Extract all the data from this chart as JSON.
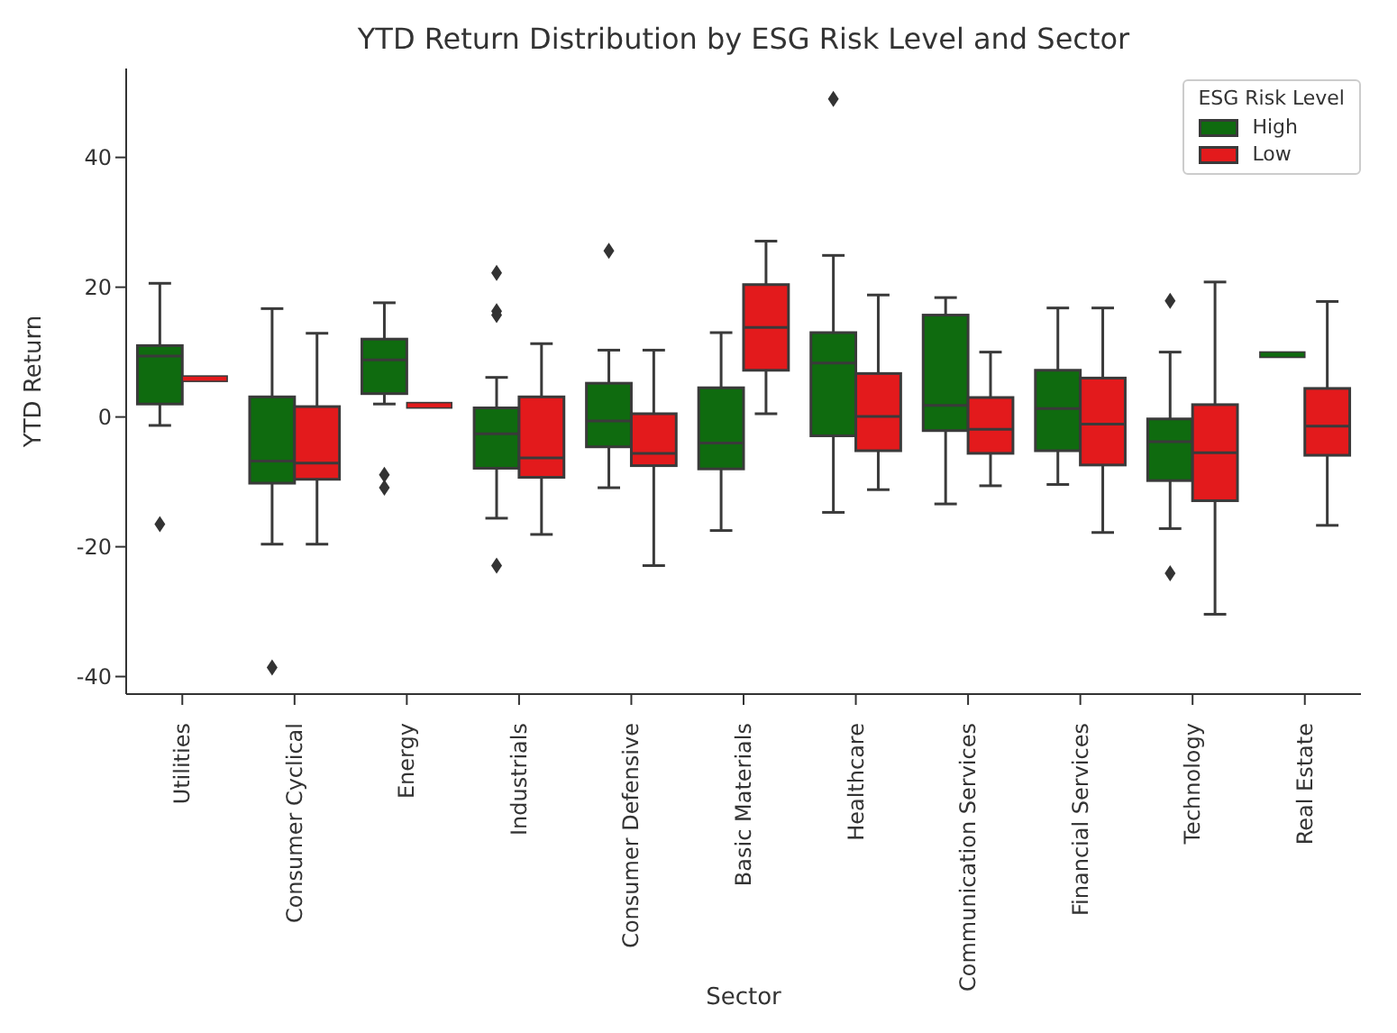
{
  "chart_data": {
    "type": "box",
    "title": "YTD Return Distribution by ESG Risk Level and Sector",
    "xlabel": "Sector",
    "ylabel": "YTD Return",
    "legend_title": "ESG Risk Level",
    "legend": "top right",
    "categories": [
      "Utilities",
      "Consumer Cyclical",
      "Energy",
      "Industrials",
      "Consumer Defensive",
      "Basic Materials",
      "Healthcare",
      "Communication Services",
      "Financial Services",
      "Technology",
      "Real Estate"
    ],
    "ylim": [
      -42.7,
      53.7
    ],
    "yticks": [
      -40,
      -20,
      0,
      20,
      40
    ],
    "series": [
      {
        "name": "High",
        "color": "#0f6b0f",
        "boxes": [
          {
            "low": -1.3,
            "q1": 2.0,
            "median": 9.4,
            "q3": 11.0,
            "high": 20.6,
            "outliers": [
              -16.5
            ]
          },
          {
            "low": -19.6,
            "q1": -10.2,
            "median": -6.8,
            "q3": 3.1,
            "high": 16.7,
            "outliers": [
              -38.6
            ]
          },
          {
            "low": 2.0,
            "q1": 3.6,
            "median": 8.8,
            "q3": 12.0,
            "high": 17.6,
            "outliers": [
              -8.9,
              -10.9
            ]
          },
          {
            "low": -15.6,
            "q1": -7.9,
            "median": -2.6,
            "q3": 1.4,
            "high": 6.1,
            "outliers": [
              22.2,
              16.3,
              15.7,
              -22.9
            ]
          },
          {
            "low": -10.9,
            "q1": -4.6,
            "median": -0.6,
            "q3": 5.2,
            "high": 10.3,
            "outliers": [
              25.6
            ]
          },
          {
            "low": -17.5,
            "q1": -8.0,
            "median": -4.0,
            "q3": 4.5,
            "high": 13.0
          },
          {
            "low": -14.7,
            "q1": -2.9,
            "median": 8.3,
            "q3": 13.0,
            "high": 24.9,
            "outliers": [
              49.0
            ]
          },
          {
            "low": -13.4,
            "q1": -2.1,
            "median": 1.8,
            "q3": 15.7,
            "high": 18.4
          },
          {
            "low": -10.4,
            "q1": -5.2,
            "median": 1.3,
            "q3": 7.2,
            "high": 16.8
          },
          {
            "low": -17.2,
            "q1": -9.8,
            "median": -3.8,
            "q3": -0.3,
            "high": 10.0,
            "outliers": [
              17.9,
              -24.1
            ]
          },
          {
            "low": 9.6,
            "q1": 9.6,
            "median": 9.6,
            "q3": 9.6,
            "high": 9.6
          }
        ]
      },
      {
        "name": "Low",
        "color": "#e31a1c",
        "boxes": [
          {
            "low": 5.9,
            "q1": 5.9,
            "median": 5.9,
            "q3": 5.9,
            "high": 5.9
          },
          {
            "low": -19.6,
            "q1": -9.6,
            "median": -7.1,
            "q3": 1.6,
            "high": 12.9
          },
          {
            "low": 1.8,
            "q1": 1.8,
            "median": 1.8,
            "q3": 1.8,
            "high": 1.8
          },
          {
            "low": -18.1,
            "q1": -9.3,
            "median": -6.3,
            "q3": 3.1,
            "high": 11.3
          },
          {
            "low": -22.9,
            "q1": -7.5,
            "median": -5.6,
            "q3": 0.5,
            "high": 10.3
          },
          {
            "low": 0.5,
            "q1": 7.2,
            "median": 13.8,
            "q3": 20.4,
            "high": 27.1
          },
          {
            "low": -11.2,
            "q1": -5.2,
            "median": 0.1,
            "q3": 6.7,
            "high": 18.8
          },
          {
            "low": -10.6,
            "q1": -5.6,
            "median": -1.9,
            "q3": 3.0,
            "high": 10.0
          },
          {
            "low": -17.8,
            "q1": -7.4,
            "median": -1.1,
            "q3": 6.0,
            "high": 16.8
          },
          {
            "low": -30.4,
            "q1": -12.9,
            "median": -5.5,
            "q3": 1.9,
            "high": 20.8
          },
          {
            "low": -16.7,
            "q1": -5.9,
            "median": -1.4,
            "q3": 4.4,
            "high": 17.8
          }
        ]
      }
    ]
  }
}
